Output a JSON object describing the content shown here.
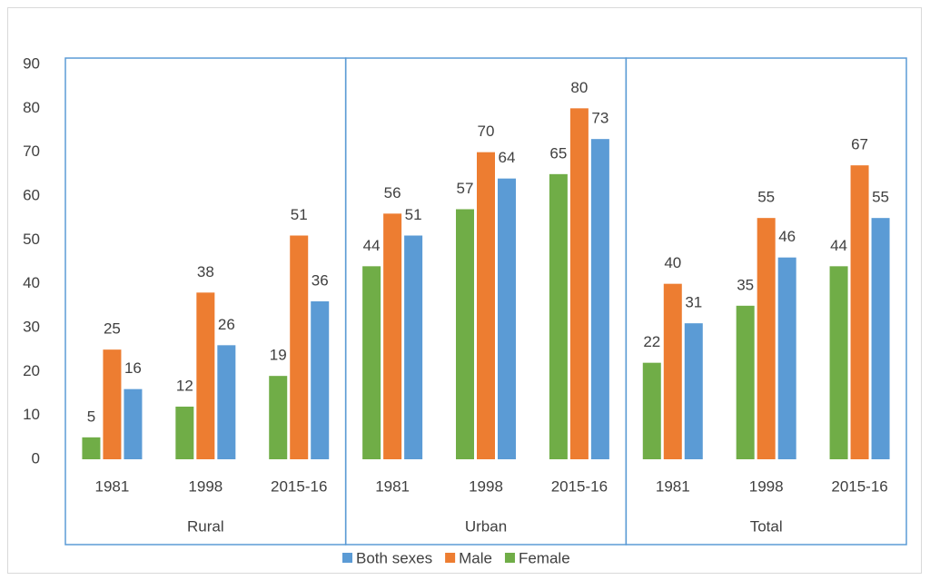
{
  "chart_data": {
    "type": "bar",
    "categories": [
      "1981",
      "1998",
      "2015-16",
      "1981",
      "1998",
      "2015-16",
      "1981",
      "1998",
      "2015-16"
    ],
    "groups": [
      "Rural",
      "Urban",
      "Total"
    ],
    "series": [
      {
        "name": "Female",
        "color": "#70ad47",
        "values": [
          5,
          12,
          19,
          44,
          57,
          65,
          22,
          35,
          44
        ]
      },
      {
        "name": "Male",
        "color": "#ed7d31",
        "values": [
          25,
          38,
          51,
          56,
          70,
          80,
          40,
          55,
          67
        ]
      },
      {
        "name": "Both sexes",
        "color": "#5b9bd5",
        "values": [
          16,
          26,
          36,
          51,
          64,
          73,
          31,
          46,
          55
        ]
      }
    ],
    "ylim": [
      0,
      90
    ],
    "yticks": [
      0,
      10,
      20,
      30,
      40,
      50,
      60,
      70,
      80,
      90
    ],
    "legend": "bottom"
  }
}
